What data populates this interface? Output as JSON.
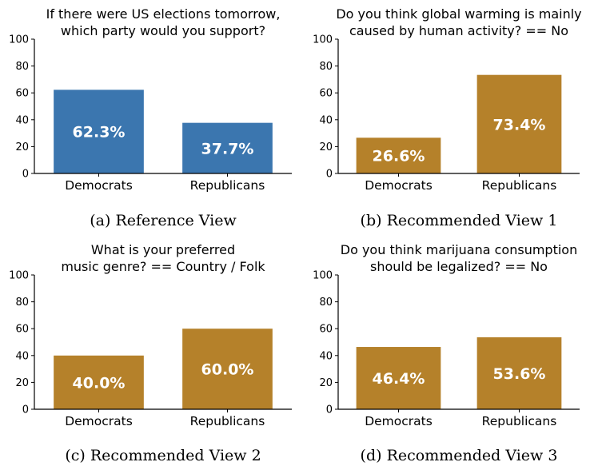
{
  "chart_data": [
    {
      "type": "bar",
      "title": "If there were US elections tomorrow, which party would you support?",
      "title_lines": [
        "If there were US elections tomorrow,",
        "which party would you support?"
      ],
      "categories": [
        "Democrats",
        "Republicans"
      ],
      "values": [
        62.3,
        37.7
      ],
      "labels": [
        "62.3%",
        "37.7%"
      ],
      "ylim": [
        0,
        100
      ],
      "yticks": [
        0,
        20,
        40,
        60,
        80,
        100
      ],
      "color": "#3b76af",
      "caption": "(a) Reference View"
    },
    {
      "type": "bar",
      "title": "Do you think global warming is mainly caused by human activity? == No",
      "title_lines": [
        "Do you think global warming is mainly",
        "caused by human activity? == No"
      ],
      "categories": [
        "Democrats",
        "Republicans"
      ],
      "values": [
        26.6,
        73.4
      ],
      "labels": [
        "26.6%",
        "73.4%"
      ],
      "ylim": [
        0,
        100
      ],
      "yticks": [
        0,
        20,
        40,
        60,
        80,
        100
      ],
      "color": "#b5812a",
      "caption": "(b) Recommended View 1"
    },
    {
      "type": "bar",
      "title": "What is your preferred music genre? == Country / Folk",
      "title_lines": [
        "What is your preferred",
        "music genre? == Country / Folk"
      ],
      "categories": [
        "Democrats",
        "Republicans"
      ],
      "values": [
        40.0,
        60.0
      ],
      "labels": [
        "40.0%",
        "60.0%"
      ],
      "ylim": [
        0,
        100
      ],
      "yticks": [
        0,
        20,
        40,
        60,
        80,
        100
      ],
      "color": "#b5812a",
      "caption": "(c) Recommended View 2"
    },
    {
      "type": "bar",
      "title": "Do you think marijuana consumption should be legalized? == No",
      "title_lines": [
        "Do you think marijuana consumption",
        "should be legalized? == No"
      ],
      "categories": [
        "Democrats",
        "Republicans"
      ],
      "values": [
        46.4,
        53.6
      ],
      "labels": [
        "46.4%",
        "53.6%"
      ],
      "ylim": [
        0,
        100
      ],
      "yticks": [
        0,
        20,
        40,
        60,
        80,
        100
      ],
      "color": "#b5812a",
      "caption": "(d) Recommended View 3"
    }
  ]
}
